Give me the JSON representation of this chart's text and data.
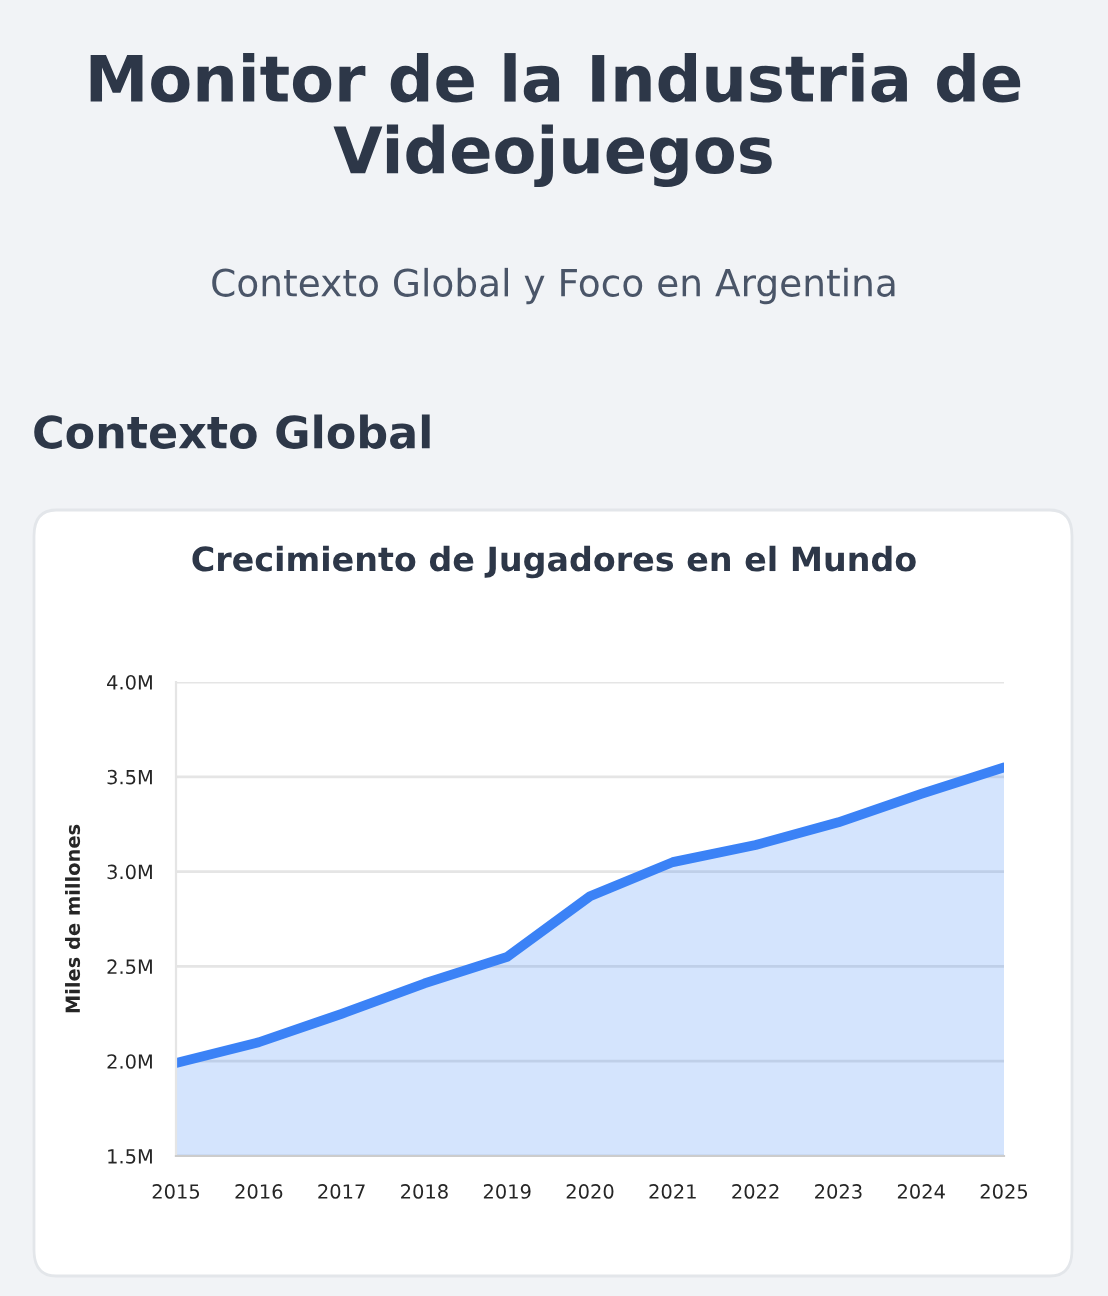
{
  "chart_data": {
    "type": "area",
    "title": "Crecimiento de Jugadores en el Mundo",
    "subtitle": "Contexto Global y Foco en Argentina",
    "annotations": [
      "Monitor de la Industria de Videojuegos",
      "Contexto Global"
    ],
    "ylabel": "Miles de millones",
    "x": [
      2015,
      2016,
      2017,
      2018,
      2019,
      2020,
      2021,
      2022,
      2023,
      2024,
      2025
    ],
    "series": [
      {
        "color": "#3b82f6",
        "values": [
          1.99,
          2.1,
          2.25,
          2.41,
          2.55,
          2.87,
          3.05,
          3.14,
          3.26,
          3.41,
          3.55
        ]
      }
    ],
    "xlim": [
      2015,
      2025
    ],
    "xticks": [
      2015,
      2016,
      2017,
      2018,
      2019,
      2020,
      2021,
      2022,
      2023,
      2024,
      2025
    ],
    "ylim": [
      1.5,
      4.0
    ],
    "yticks": [
      {
        "value": 1.5,
        "label": "1.5M"
      },
      {
        "value": 2.0,
        "label": "2.0M"
      },
      {
        "value": 2.5,
        "label": "2.5M"
      },
      {
        "value": 3.0,
        "label": "3.0M"
      },
      {
        "value": 3.5,
        "label": "3.5M"
      },
      {
        "value": 4.0,
        "label": "4.0M"
      }
    ],
    "grid": "y",
    "marker": "none",
    "line_style": "solid"
  }
}
